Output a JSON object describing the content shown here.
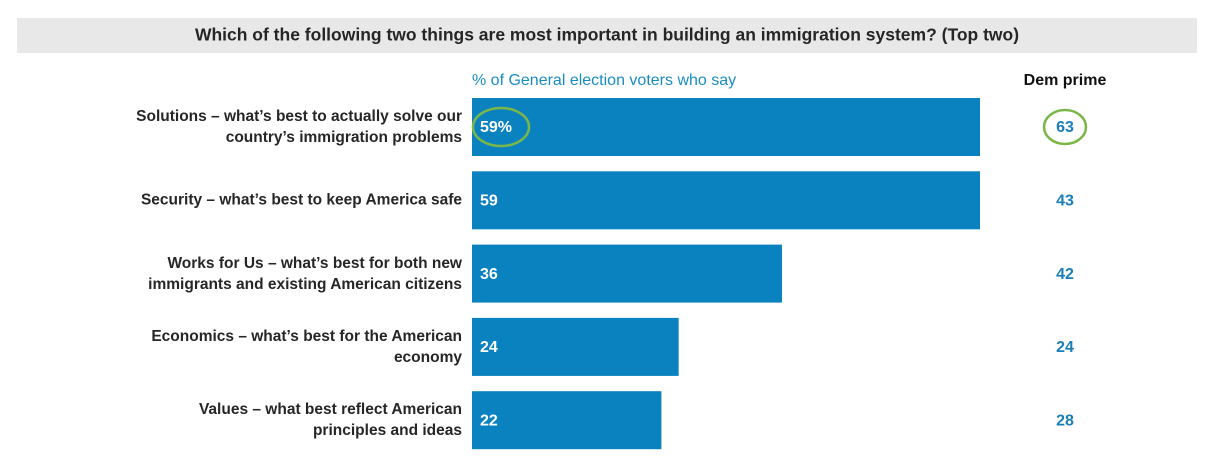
{
  "chart_data": {
    "type": "bar",
    "title": "Which of the following two things are most important in building an immigration system? (Top two)",
    "subtitle": "% of General election voters who say",
    "categories": [
      "Solutions – what’s best to actually solve our\ncountry’s immigration problems",
      "Security – what’s best to keep America safe",
      "Works for Us – what’s best for both new\nimmigrants and existing American citizens",
      "Economics – what’s best for the American\neconomy",
      "Values – what best reflect American\nprinciples and ideas"
    ],
    "values": [
      59,
      59,
      36,
      24,
      22
    ],
    "value_labels": [
      "59%",
      "59",
      "36",
      "24",
      "22"
    ],
    "color": "#0a82c0",
    "dem_prime": {
      "name": "Dem prime",
      "color": "#1a7fb8",
      "values": [
        63,
        43,
        42,
        24,
        28
      ]
    }
  }
}
